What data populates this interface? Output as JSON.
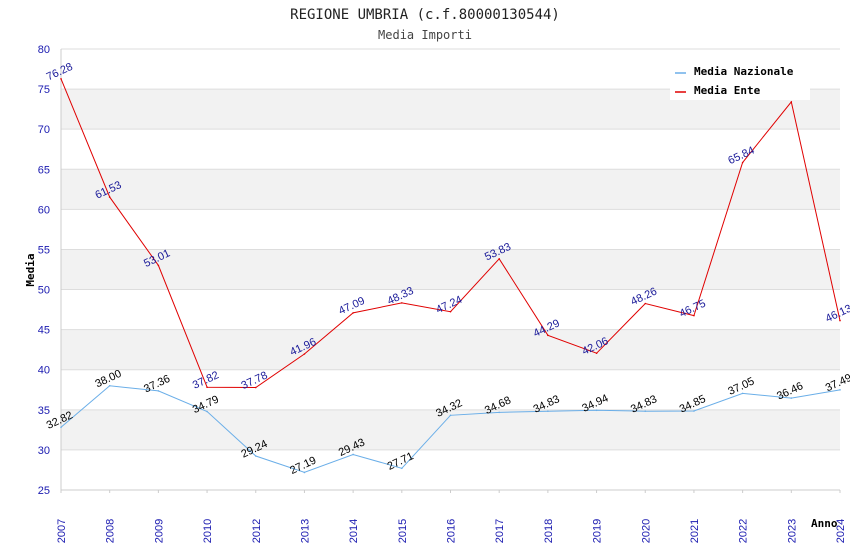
{
  "chart_data": {
    "type": "line",
    "title": "REGIONE UMBRIA (c.f.80000130544)",
    "subtitle": "Media Importi",
    "xlabel": "Anno",
    "ylabel": "Media",
    "ylim": [
      25,
      80
    ],
    "yticks": [
      "25",
      "30",
      "35",
      "40",
      "45",
      "50",
      "55",
      "60",
      "65",
      "70",
      "75",
      "80"
    ],
    "categories": [
      "2007",
      "2008",
      "2009",
      "2010",
      "2012",
      "2013",
      "2014",
      "2015",
      "2016",
      "2017",
      "2018",
      "2019",
      "2020",
      "2021",
      "2022",
      "2023",
      "2024"
    ],
    "series": [
      {
        "name": "Media Nazionale",
        "color": "#6aaee8",
        "label_color": "#000000",
        "values": [
          32.82,
          38.0,
          37.36,
          34.79,
          29.24,
          27.19,
          29.43,
          27.71,
          34.32,
          34.68,
          34.83,
          34.94,
          34.83,
          34.85,
          37.05,
          36.46,
          37.49
        ],
        "labels": [
          "32.82",
          "38.00",
          "37.36",
          "34.79",
          "29.24",
          "27.19",
          "29.43",
          "27.71",
          "34.32",
          "34.68",
          "34.83",
          "34.94",
          "34.83",
          "34.85",
          "37.05",
          "36.46",
          "37.49"
        ]
      },
      {
        "name": "Media Ente",
        "color": "#e00000",
        "label_color": "#1a1a99",
        "values": [
          76.28,
          61.53,
          53.01,
          37.82,
          37.78,
          41.96,
          47.09,
          48.33,
          47.24,
          53.83,
          44.29,
          42.06,
          48.26,
          46.75,
          65.84,
          73.4,
          46.13
        ],
        "labels": [
          "76.28",
          "61.53",
          "53.01",
          "37.82",
          "37.78",
          "41.96",
          "47.09",
          "48.33",
          "47.24",
          "53.83",
          "44.29",
          "42.06",
          "48.26",
          "46.75",
          "65.84",
          null,
          "46.13"
        ]
      }
    ],
    "grid": true,
    "legend": "top-right"
  }
}
